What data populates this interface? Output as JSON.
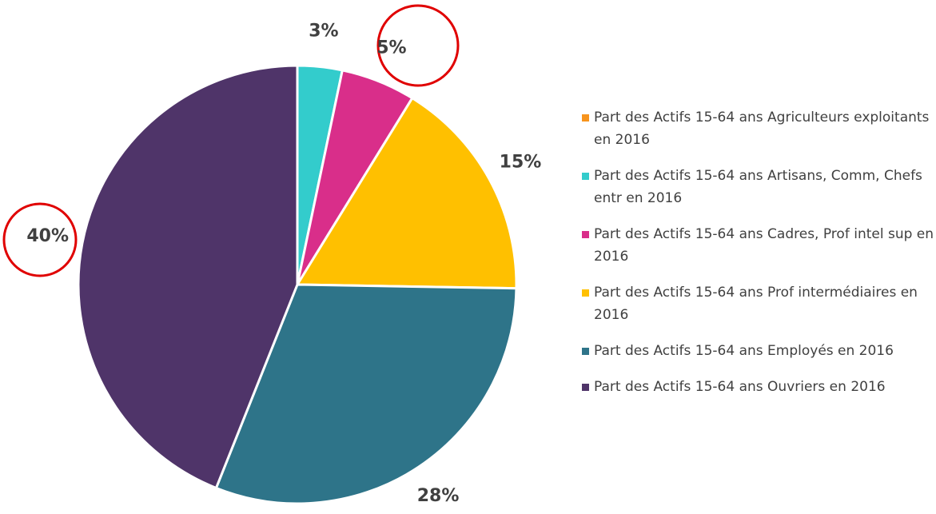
{
  "chart_data": {
    "type": "pie",
    "categories": [
      "Part des Actifs 15-64 ans Agriculteurs exploitants en 2016",
      "Part des Actifs 15-64 ans Artisans, Comm, Chefs entr en 2016",
      "Part des Actifs 15-64 ans Cadres, Prof intel sup en 2016",
      "Part des Actifs 15-64 ans Prof intermédiaires en 2016",
      "Part des Actifs 15-64 ans Employés en 2016",
      "Part des Actifs 15-64 ans Ouvriers en 2016"
    ],
    "values": [
      0,
      3,
      5,
      15,
      28,
      40
    ],
    "value_labels": [
      null,
      "3%",
      "5%",
      "15%",
      "28%",
      "40%"
    ],
    "colors": [
      "#f7941d",
      "#33cccc",
      "#d92e8a",
      "#ffc000",
      "#2e7489",
      "#4f3469"
    ],
    "legend": "right"
  }
}
